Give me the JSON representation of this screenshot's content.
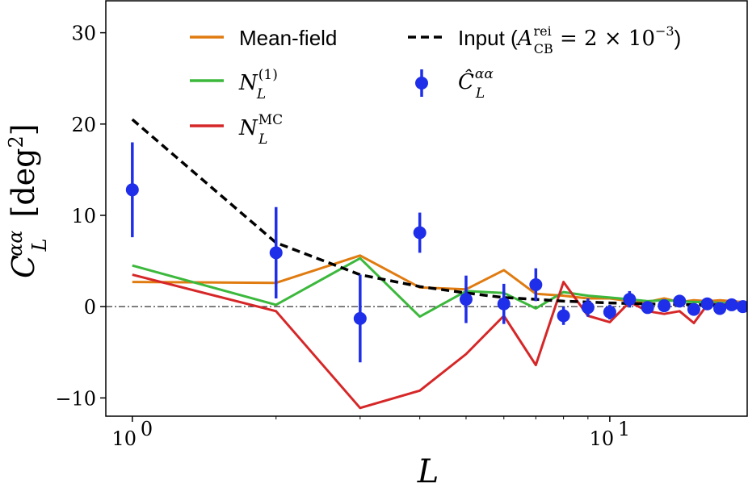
{
  "chart_data": {
    "type": "line",
    "x_scale": "log",
    "xlim": [
      0.88,
      19.4
    ],
    "ylim": [
      -12,
      33.5
    ],
    "xlabel": "L",
    "ylabel": "C_L^{αα} [deg²]",
    "yticks": [
      {
        "value": -10,
        "label": "−10"
      },
      {
        "value": 0,
        "label": "0"
      },
      {
        "value": 10,
        "label": "10"
      },
      {
        "value": 20,
        "label": "20"
      },
      {
        "value": 30,
        "label": "30"
      }
    ],
    "xticks": [
      {
        "value": 1,
        "label": "10",
        "exp": "0"
      },
      {
        "value": 10,
        "label": "10",
        "exp": "1"
      }
    ],
    "zero_line": true,
    "legend_position": "top",
    "series": [
      {
        "key": "mean_field",
        "name": "Mean-field",
        "color": "#e07b10",
        "style": "solid",
        "x": [
          1,
          2,
          3,
          4,
          5,
          6,
          7,
          8,
          9,
          10,
          11,
          12,
          13,
          14,
          15,
          16,
          17,
          18,
          19
        ],
        "y": [
          2.7,
          2.6,
          5.6,
          2.1,
          1.9,
          4.0,
          1.4,
          1.2,
          0.9,
          0.9,
          0.6,
          0.5,
          0.9,
          0.5,
          0.7,
          0.6,
          0.7,
          0.6,
          0.5
        ]
      },
      {
        "key": "n1",
        "name": "N_L^(1)",
        "color": "#3cb83c",
        "style": "solid",
        "x": [
          1,
          2,
          3,
          4,
          5,
          6,
          7,
          8,
          9,
          10,
          11,
          12,
          13,
          14,
          15,
          16,
          17,
          18,
          19
        ],
        "y": [
          4.5,
          0.2,
          5.3,
          -1.1,
          1.7,
          1.5,
          -0.2,
          1.6,
          1.2,
          1.0,
          0.8,
          0.6,
          0.7,
          0.6,
          0.5,
          0.5,
          0.4,
          0.4,
          0.3
        ]
      },
      {
        "key": "nmc",
        "name": "N_L^MC",
        "color": "#d62728",
        "style": "solid",
        "x": [
          1,
          2,
          3,
          4,
          5,
          6,
          7,
          8,
          9,
          10,
          11,
          12,
          13,
          14,
          15,
          16,
          17,
          18,
          19
        ],
        "y": [
          3.5,
          -0.5,
          -11.1,
          -9.2,
          -5.2,
          -1.0,
          -6.4,
          2.7,
          -1.0,
          -1.7,
          0.5,
          -0.5,
          -0.8,
          -0.5,
          -1.8,
          0.2,
          0.3,
          0.1,
          0.0
        ]
      },
      {
        "key": "input",
        "name": "Input (A_CB^rei = 2 × 10^−3)",
        "color": "#000000",
        "style": "dashed",
        "x": [
          1,
          2,
          3,
          4,
          5,
          6,
          7,
          8,
          9,
          10,
          11,
          12,
          13,
          14,
          15,
          16,
          17,
          18,
          19
        ],
        "y": [
          20.5,
          7.0,
          3.5,
          2.2,
          1.5,
          1.0,
          0.8,
          0.6,
          0.5,
          0.4,
          0.35,
          0.3,
          0.27,
          0.24,
          0.22,
          0.2,
          0.18,
          0.16,
          0.15
        ]
      }
    ],
    "points": {
      "key": "estimate",
      "name": "Ĉ_L^{αα}",
      "color": "#1f2ee8",
      "x": [
        1,
        2,
        3,
        4,
        5,
        6,
        7,
        8,
        9,
        10,
        11,
        12,
        13,
        14,
        15,
        16,
        17,
        18,
        19
      ],
      "y": [
        12.8,
        5.9,
        -1.3,
        8.1,
        0.8,
        0.3,
        2.4,
        -1.0,
        -0.1,
        -0.6,
        0.8,
        -0.1,
        0.1,
        0.6,
        -0.3,
        0.3,
        -0.2,
        0.2,
        0.0
      ],
      "yerr": [
        5.2,
        5.0,
        4.8,
        2.2,
        2.6,
        2.2,
        1.8,
        1.0,
        1.0,
        0.8,
        0.9,
        0.6,
        0.6,
        0.6,
        0.5,
        0.5,
        0.4,
        0.4,
        0.4
      ]
    },
    "legend_labels": {
      "mean_field": "Mean-field",
      "n1_main": "N",
      "n1_sub": "L",
      "n1_sup": "(1)",
      "nmc_main": "N",
      "nmc_sub": "L",
      "nmc_sup": "MC",
      "input_word": "Input (",
      "input_A": "A",
      "input_sub": "CB",
      "input_sup": "rei",
      "input_rest": " = 2 × 10",
      "input_exp": "−3",
      "input_close": ")",
      "est_main": "Ĉ",
      "est_sub": "L",
      "est_sup": "αα"
    },
    "axis_text": {
      "x_label": "L",
      "y_main": "C",
      "y_sub": "L",
      "y_sup": "αα",
      "y_unit_open": " [deg",
      "y_unit_sup": "2",
      "y_unit_close": "]"
    }
  }
}
